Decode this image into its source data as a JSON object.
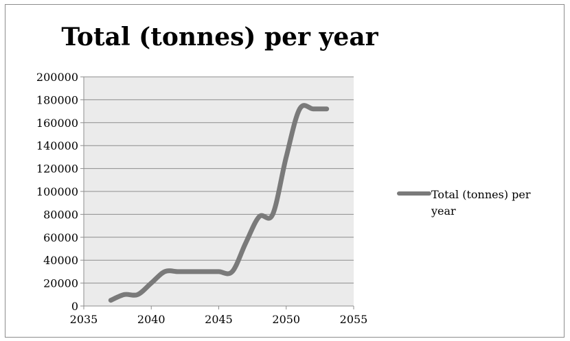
{
  "chart_data": {
    "type": "line",
    "title": "Total (tonnes) per year",
    "xlabel": "",
    "ylabel": "",
    "xlim": [
      2035,
      2055
    ],
    "ylim": [
      0,
      200000
    ],
    "x_ticks": [
      2035,
      2040,
      2045,
      2050,
      2055
    ],
    "y_ticks": [
      0,
      20000,
      40000,
      60000,
      80000,
      100000,
      120000,
      140000,
      160000,
      180000,
      200000
    ],
    "grid": "horizontal",
    "legend_position": "right",
    "smooth": true,
    "series": [
      {
        "name": "Total (tonnes) per year",
        "color": "#7a7a7a",
        "x": [
          2037,
          2038,
          2039,
          2040,
          2041,
          2042,
          2043,
          2044,
          2045,
          2046,
          2047,
          2048,
          2049,
          2050,
          2051,
          2052,
          2053
        ],
        "values": [
          5000,
          10000,
          10000,
          20000,
          30000,
          30000,
          30000,
          30000,
          30000,
          30000,
          55000,
          78000,
          80000,
          130000,
          172000,
          172000,
          172000
        ]
      }
    ]
  }
}
